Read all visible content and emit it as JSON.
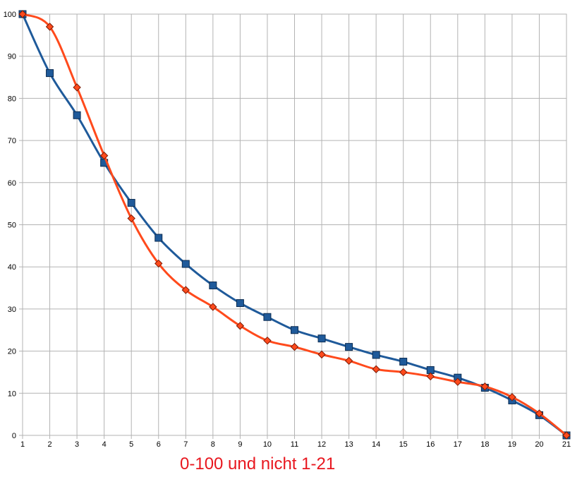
{
  "chart_data": {
    "type": "line",
    "title": "",
    "xlabel": "",
    "ylabel": "",
    "x": [
      1,
      2,
      3,
      4,
      5,
      6,
      7,
      8,
      9,
      10,
      11,
      12,
      13,
      14,
      15,
      16,
      17,
      18,
      19,
      20,
      21
    ],
    "xlim": [
      1,
      21
    ],
    "ylim": [
      0,
      100
    ],
    "yticks": [
      0,
      10,
      20,
      30,
      40,
      50,
      60,
      70,
      80,
      90,
      100
    ],
    "grid": true,
    "legend": "none",
    "series": [
      {
        "marker": "square",
        "color": "#1f5a9a",
        "values": [
          100,
          86,
          76,
          64.7,
          55.2,
          46.9,
          40.7,
          35.6,
          31.4,
          28.1,
          25,
          23,
          21,
          19.1,
          17.5,
          15.5,
          13.7,
          11.3,
          8.3,
          4.8,
          0
        ]
      },
      {
        "marker": "diamond",
        "color": "#ff4a1c",
        "values": [
          100,
          97,
          82.6,
          66.4,
          51.5,
          40.8,
          34.5,
          30.5,
          26,
          22.5,
          21,
          19.2,
          17.7,
          15.7,
          15,
          14,
          12.7,
          11.6,
          9.1,
          5.2,
          0
        ]
      }
    ]
  },
  "annotation": "0-100 und nicht 1-21"
}
